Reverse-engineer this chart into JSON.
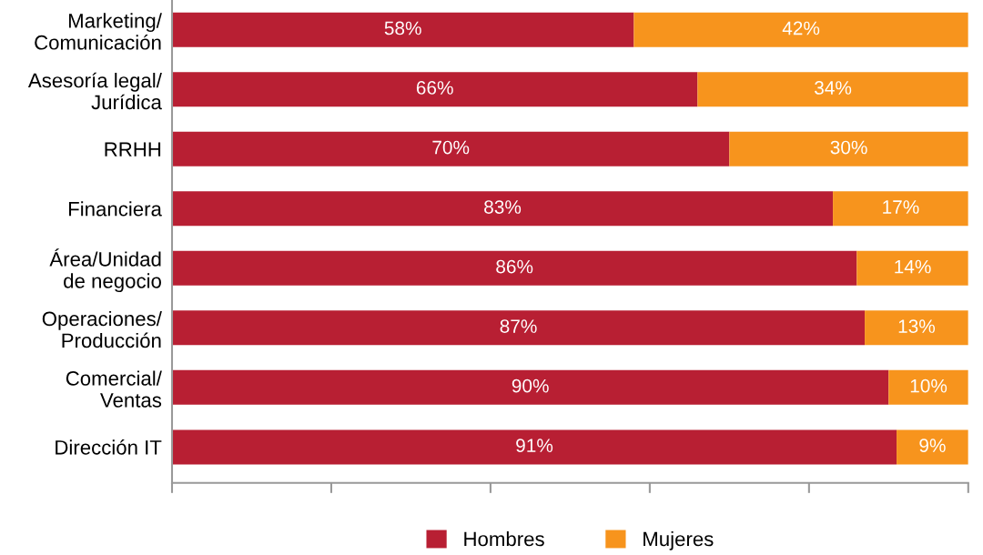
{
  "chart_data": {
    "type": "bar",
    "orientation": "horizontal",
    "stacked": true,
    "data_labels": true,
    "legend": "bottom",
    "grid": false,
    "tick_labels": "y",
    "categories": [
      "Marketing/\nComunicación",
      "Asesoría legal/\nJurídica",
      "RRHH",
      "Financiera",
      "Área/Unidad\nde negocio",
      "Operaciones/\nProducción",
      "Comercial/\nVentas",
      "Dirección IT"
    ],
    "series": [
      {
        "name": "Hombres",
        "color": "#b81f33",
        "values": [
          58,
          66,
          70,
          83,
          86,
          87,
          90,
          91
        ],
        "value_labels": [
          "58%",
          "66%",
          "70%",
          "83%",
          "86%",
          "87%",
          "90%",
          "91%"
        ]
      },
      {
        "name": "Mujeres",
        "color": "#f7941d",
        "values": [
          42,
          34,
          30,
          17,
          14,
          13,
          10,
          9
        ],
        "value_labels": [
          "42%",
          "34%",
          "30%",
          "17%",
          "14%",
          "13%",
          "10%",
          "9%"
        ]
      }
    ]
  }
}
